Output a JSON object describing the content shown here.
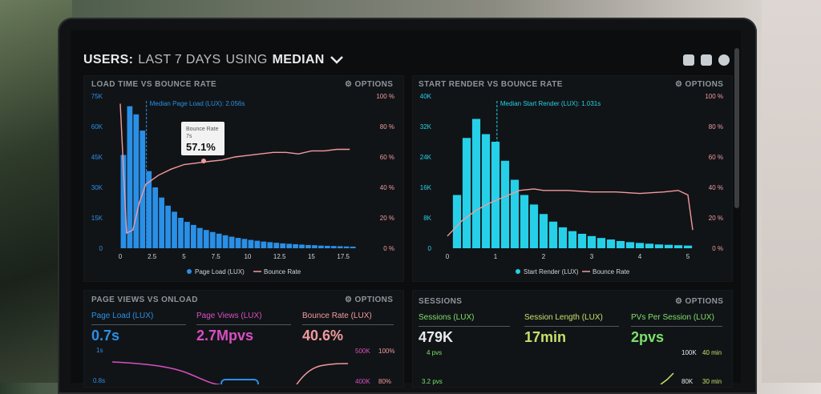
{
  "header": {
    "prefix": "USERS:",
    "range": "LAST 7 DAYS",
    "using": "USING",
    "stat": "MEDIAN"
  },
  "colors": {
    "accent_blue": "#2a8fe6",
    "accent_cyan": "#26d0e8",
    "bounce_pink": "#f29a9e",
    "magenta": "#d84fc0",
    "green": "#7de06a",
    "white": "#e8eaec"
  },
  "icons": [
    "monitor-icon",
    "share-icon",
    "help-icon",
    "gear-icon",
    "chevron-down-icon"
  ],
  "panels": {
    "load_time": {
      "title": "LOAD TIME VS BOUNCE RATE",
      "options": "OPTIONS",
      "median_label": "Median Page Load (LUX): 2.056s",
      "tooltip_title": "Bounce Rate",
      "tooltip_sub": "7s",
      "tooltip_value": "57.1%",
      "legend": [
        "Page Load (LUX)",
        "Bounce Rate"
      ]
    },
    "start_render": {
      "title": "START RENDER VS BOUNCE RATE",
      "options": "OPTIONS",
      "median_label": "Median Start Render (LUX): 1.031s",
      "legend": [
        "Start Render (LUX)",
        "Bounce Rate"
      ]
    },
    "page_views": {
      "title": "PAGE VIEWS VS ONLOAD",
      "options": "OPTIONS",
      "metrics": [
        {
          "label": "Page Load (LUX)",
          "value": "0.7s"
        },
        {
          "label": "Page Views (LUX)",
          "value": "2.7Mpvs"
        },
        {
          "label": "Bounce Rate (LUX)",
          "value": "40.6%"
        }
      ],
      "axis_left": [
        "1s",
        "0.8s"
      ],
      "axis_right_a": [
        "500K",
        "400K"
      ],
      "axis_right_b": [
        "100%",
        "80%"
      ]
    },
    "sessions": {
      "title": "SESSIONS",
      "options": "OPTIONS",
      "metrics": [
        {
          "label": "Sessions (LUX)",
          "value": "479K"
        },
        {
          "label": "Session Length (LUX)",
          "value": "17min"
        },
        {
          "label": "PVs Per Session (LUX)",
          "value": "2pvs"
        }
      ],
      "axis_left": [
        "4 pvs",
        "3.2 pvs"
      ],
      "axis_right_a": [
        "100K",
        "80K"
      ],
      "axis_right_b": [
        "40 min",
        "30 min"
      ]
    }
  },
  "chart_data": [
    {
      "type": "bar",
      "title": "LOAD TIME VS BOUNCE RATE",
      "x_ticks": [
        "0",
        "2.5",
        "5",
        "7.5",
        "10",
        "12.5",
        "15",
        "17.5"
      ],
      "y_ticks": [
        "0",
        "15K",
        "30K",
        "45K",
        "60K",
        "75K"
      ],
      "y2_ticks": [
        "0 %",
        "20 %",
        "40 %",
        "60 %",
        "80 %",
        "100 %"
      ],
      "xlim": [
        -0.5,
        19.5
      ],
      "ylim": [
        0,
        75000
      ],
      "y2lim": [
        0,
        100
      ],
      "median_x": 2.056,
      "x": [
        0.25,
        0.75,
        1.25,
        1.75,
        2.25,
        2.75,
        3.25,
        3.75,
        4.25,
        4.75,
        5.25,
        5.75,
        6.25,
        6.75,
        7.25,
        7.75,
        8.25,
        8.75,
        9.25,
        9.75,
        10.25,
        10.75,
        11.25,
        11.75,
        12.25,
        12.75,
        13.25,
        13.75,
        14.25,
        14.75,
        15.25,
        15.75,
        16.25,
        16.75,
        17.25,
        17.75,
        18.25
      ],
      "values": [
        46000,
        70000,
        66000,
        58000,
        38000,
        30000,
        25000,
        21000,
        18000,
        15000,
        13000,
        11500,
        10000,
        9000,
        8000,
        7200,
        6400,
        5700,
        5100,
        4600,
        4100,
        3700,
        3300,
        3000,
        2700,
        2400,
        2200,
        2000,
        1800,
        1600,
        1500,
        1300,
        1200,
        1100,
        1000,
        900,
        800
      ],
      "series": [
        {
          "name": "Page Load (LUX)",
          "values": [
            46000,
            70000,
            66000,
            58000,
            38000,
            30000,
            25000,
            21000,
            18000,
            15000,
            13000,
            11500,
            10000,
            9000,
            8000,
            7200,
            6400,
            5700,
            5100,
            4600,
            4100,
            3700,
            3300,
            3000,
            2700,
            2400,
            2200,
            2000,
            1800,
            1600,
            1500,
            1300,
            1200,
            1100,
            1000,
            900,
            800
          ]
        },
        {
          "name": "Bounce Rate",
          "x": [
            0,
            0.5,
            1,
            1.5,
            2,
            3,
            4,
            5,
            6,
            7,
            8,
            9,
            10,
            11,
            12,
            13,
            14,
            15,
            16,
            17,
            18
          ],
          "values": [
            95,
            10,
            12,
            30,
            42,
            48,
            52,
            55,
            56,
            57.1,
            58,
            60,
            61,
            62,
            63,
            63,
            62,
            64,
            64,
            65,
            65
          ]
        }
      ]
    },
    {
      "type": "bar",
      "title": "START RENDER VS BOUNCE RATE",
      "x_ticks": [
        "0",
        "1",
        "2",
        "3",
        "4",
        "5"
      ],
      "y_ticks": [
        "0",
        "8K",
        "16K",
        "24K",
        "32K",
        "40K"
      ],
      "y2_ticks": [
        "0 %",
        "20 %",
        "40 %",
        "60 %",
        "80 %",
        "100 %"
      ],
      "xlim": [
        -0.1,
        5.2
      ],
      "ylim": [
        0,
        40000
      ],
      "y2lim": [
        0,
        100
      ],
      "median_x": 1.031,
      "x": [
        0.2,
        0.4,
        0.6,
        0.8,
        1.0,
        1.2,
        1.4,
        1.6,
        1.8,
        2.0,
        2.2,
        2.4,
        2.6,
        2.8,
        3.0,
        3.2,
        3.4,
        3.6,
        3.8,
        4.0,
        4.2,
        4.4,
        4.6,
        4.8,
        5.0
      ],
      "values": [
        14000,
        29000,
        34000,
        30000,
        28000,
        23000,
        18000,
        14000,
        11500,
        9000,
        7000,
        5500,
        4500,
        3800,
        3200,
        2700,
        2300,
        1900,
        1600,
        1400,
        1200,
        1000,
        900,
        800,
        700
      ],
      "series": [
        {
          "name": "Start Render (LUX)",
          "values": [
            14000,
            29000,
            34000,
            30000,
            28000,
            23000,
            18000,
            14000,
            11500,
            9000,
            7000,
            5500,
            4500,
            3800,
            3200,
            2700,
            2300,
            1900,
            1600,
            1400,
            1200,
            1000,
            900,
            800,
            700
          ]
        },
        {
          "name": "Bounce Rate",
          "x": [
            0,
            0.3,
            0.6,
            0.9,
            1.2,
            1.5,
            1.8,
            2.0,
            2.5,
            3.0,
            3.5,
            4.0,
            4.5,
            4.8,
            5.0,
            5.1
          ],
          "values": [
            8,
            18,
            25,
            30,
            34,
            38,
            39,
            38,
            38,
            37,
            37,
            36,
            37,
            38,
            35,
            12
          ]
        }
      ]
    }
  ]
}
